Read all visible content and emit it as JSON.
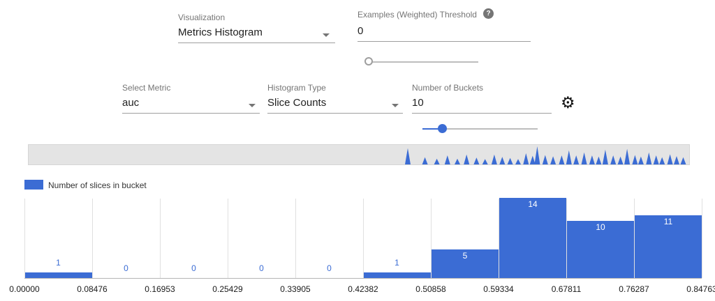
{
  "controls": {
    "visualization": {
      "label": "Visualization",
      "value": "Metrics Histogram"
    },
    "threshold": {
      "label": "Examples (Weighted) Threshold",
      "value": "0",
      "help_icon": "question-mark"
    },
    "select_metric": {
      "label": "Select Metric",
      "value": "auc"
    },
    "histogram_type": {
      "label": "Histogram Type",
      "value": "Slice Counts"
    },
    "num_buckets": {
      "label": "Number of Buckets",
      "value": "10"
    }
  },
  "legend": {
    "label": "Number of slices in bucket"
  },
  "colors": {
    "bar_blue": "#3b6cd4",
    "slider_blue": "#3b6cd4",
    "track_gray": "#bdbdbd",
    "minimap_bg": "#e4e4e4"
  },
  "chart_data": {
    "type": "bar",
    "series_name": "Number of slices in bucket",
    "x_tick_labels": [
      "0.00000",
      "0.08476",
      "0.16953",
      "0.25429",
      "0.33905",
      "0.42382",
      "0.50858",
      "0.59334",
      "0.67811",
      "0.76287",
      "0.84763"
    ],
    "values": [
      1,
      0,
      0,
      0,
      0,
      1,
      5,
      14,
      10,
      11
    ],
    "ylim": [
      0,
      14
    ],
    "grid": "vertical",
    "legend_position": "top-left",
    "bar_color": "#3b6cd4"
  },
  "minimap_spikes": [
    [
      0.574,
      0.9
    ],
    [
      0.6,
      0.4
    ],
    [
      0.618,
      0.32
    ],
    [
      0.634,
      0.5
    ],
    [
      0.649,
      0.32
    ],
    [
      0.663,
      0.55
    ],
    [
      0.678,
      0.38
    ],
    [
      0.691,
      0.3
    ],
    [
      0.705,
      0.55
    ],
    [
      0.717,
      0.42
    ],
    [
      0.729,
      0.36
    ],
    [
      0.741,
      0.3
    ],
    [
      0.753,
      0.62
    ],
    [
      0.763,
      0.48
    ],
    [
      0.77,
      1.0
    ],
    [
      0.782,
      0.52
    ],
    [
      0.794,
      0.45
    ],
    [
      0.807,
      0.5
    ],
    [
      0.818,
      0.78
    ],
    [
      0.829,
      0.5
    ],
    [
      0.841,
      0.66
    ],
    [
      0.853,
      0.5
    ],
    [
      0.863,
      0.44
    ],
    [
      0.873,
      0.82
    ],
    [
      0.885,
      0.5
    ],
    [
      0.896,
      0.44
    ],
    [
      0.906,
      0.86
    ],
    [
      0.918,
      0.52
    ],
    [
      0.927,
      0.44
    ],
    [
      0.939,
      0.66
    ],
    [
      0.95,
      0.5
    ],
    [
      0.959,
      0.4
    ],
    [
      0.971,
      0.56
    ],
    [
      0.981,
      0.46
    ],
    [
      0.991,
      0.4
    ]
  ]
}
